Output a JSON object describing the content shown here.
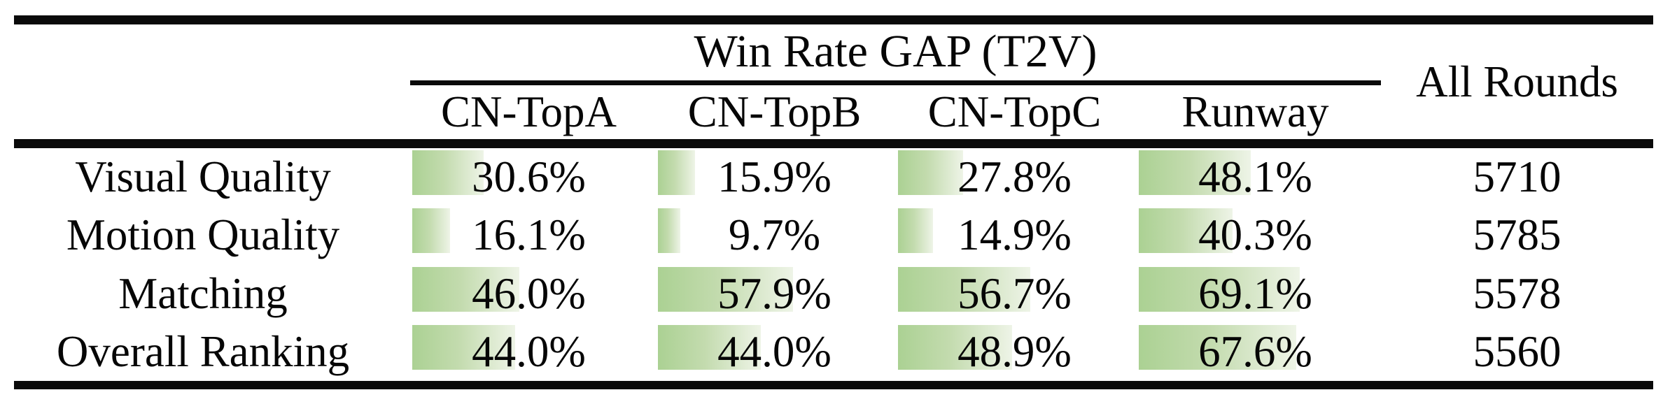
{
  "table": {
    "group_header": "Win Rate GAP (T2V)",
    "all_rounds_header": "All Rounds",
    "columns": [
      "CN-TopA",
      "CN-TopB",
      "CN-TopC",
      "Runway"
    ],
    "rows": [
      {
        "label": "Visual Quality",
        "values": [
          {
            "pct": 30.6,
            "text": "30.6%"
          },
          {
            "pct": 15.9,
            "text": "15.9%"
          },
          {
            "pct": 27.8,
            "text": "27.8%"
          },
          {
            "pct": 48.1,
            "text": "48.1%"
          }
        ],
        "all_rounds": "5710"
      },
      {
        "label": "Motion Quality",
        "values": [
          {
            "pct": 16.1,
            "text": "16.1%"
          },
          {
            "pct": 9.7,
            "text": "9.7%"
          },
          {
            "pct": 14.9,
            "text": "14.9%"
          },
          {
            "pct": 40.3,
            "text": "40.3%"
          }
        ],
        "all_rounds": "5785"
      },
      {
        "label": "Matching",
        "values": [
          {
            "pct": 46.0,
            "text": "46.0%"
          },
          {
            "pct": 57.9,
            "text": "57.9%"
          },
          {
            "pct": 56.7,
            "text": "56.7%"
          },
          {
            "pct": 69.1,
            "text": "69.1%"
          }
        ],
        "all_rounds": "5578"
      },
      {
        "label": "Overall Ranking",
        "values": [
          {
            "pct": 44.0,
            "text": "44.0%"
          },
          {
            "pct": 44.0,
            "text": "44.0%"
          },
          {
            "pct": 48.9,
            "text": "48.9%"
          },
          {
            "pct": 67.6,
            "text": "67.6%"
          }
        ],
        "all_rounds": "5560"
      }
    ],
    "bar_gradient": {
      "start": "#abd193",
      "mid": "#c3dbae",
      "end": "#eef4e7"
    },
    "rule_color": "#0a0a0a"
  }
}
